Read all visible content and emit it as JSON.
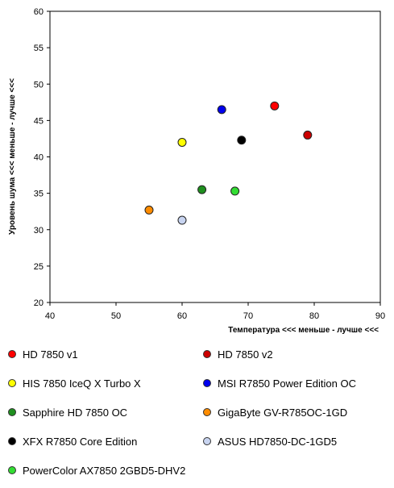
{
  "chart_data": {
    "type": "scatter",
    "title": "",
    "xlabel": "Температура <<< меньше - лучше <<<",
    "ylabel": "Уровень шума <<< меньше - лучше <<<",
    "xlim": [
      40,
      90
    ],
    "ylim": [
      20,
      60
    ],
    "xticks": [
      40,
      50,
      60,
      70,
      80,
      90
    ],
    "yticks": [
      20,
      25,
      30,
      35,
      40,
      45,
      50,
      55,
      60
    ],
    "grid": false,
    "legend_position": "bottom",
    "series": [
      {
        "name": "HD 7850 v1",
        "color": "#ff0000",
        "x": 74,
        "y": 47
      },
      {
        "name": "HD 7850 v2",
        "color": "#cc0000",
        "x": 79,
        "y": 43
      },
      {
        "name": "HIS 7850 IceQ X Turbo X",
        "color": "#ffff00",
        "x": 60,
        "y": 42
      },
      {
        "name": "MSI R7850 Power Edition OC",
        "color": "#0000ee",
        "x": 66,
        "y": 46.5
      },
      {
        "name": "Sapphire HD 7850 OC",
        "color": "#1f8f1f",
        "x": 63,
        "y": 35.5
      },
      {
        "name": "GigaByte GV-R785OC-1GD",
        "color": "#ff8c00",
        "x": 55,
        "y": 32.7
      },
      {
        "name": "XFX R7850 Core Edition",
        "color": "#000000",
        "x": 69,
        "y": 42.3
      },
      {
        "name": "ASUS HD7850-DC-1GD5",
        "color": "#c8d4f0",
        "x": 60,
        "y": 31.3
      },
      {
        "name": "PowerColor AX7850 2GBD5-DHV2",
        "color": "#33dd33",
        "x": 68,
        "y": 35.3
      }
    ]
  }
}
